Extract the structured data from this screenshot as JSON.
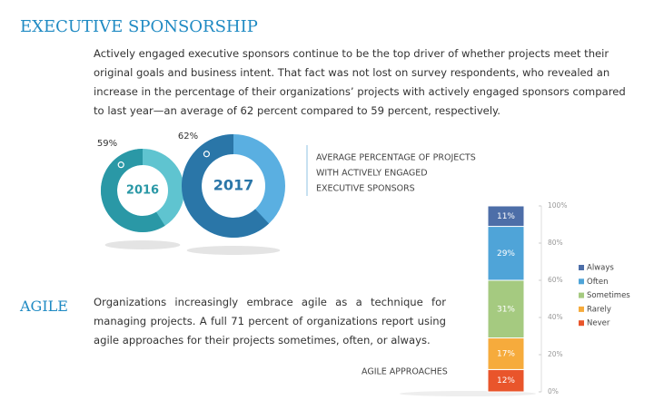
{
  "sponsorship": {
    "title": "EXECUTIVE SPONSORSHIP",
    "body": "Actively engaged executive sponsors continue to be the top driver of whether projects meet their original goals and business intent. That fact was not lost on survey respondents, who revealed an increase in the percentage of their organizations’ projects with actively engaged sponsors compared to last year—an average of 62 percent compared to 59 percent, respectively."
  },
  "sponsorship_chart": {
    "type": "donut",
    "caption_lines": [
      "AVERAGE PERCENTAGE OF PROJECTS",
      "WITH ACTIVELY ENGAGED",
      "EXECUTIVE SPONSORS"
    ],
    "items": [
      {
        "year": "2016",
        "value": 59,
        "value_label": "59%",
        "color": "#2a98a6",
        "track_color": "#5fc4d0"
      },
      {
        "year": "2017",
        "value": 62,
        "value_label": "62%",
        "color": "#2a76a8",
        "track_color": "#5aafe1"
      }
    ]
  },
  "agile": {
    "title": "AGILE",
    "body": "Organizations increasingly embrace agile as a technique for managing projects. A full 71 percent of organizations report using agile approaches for their projects sometimes, often, or always."
  },
  "chart_data": {
    "type": "stacked_bar",
    "caption": "AGILE APPROACHES",
    "series": [
      {
        "name": "Always",
        "color": "#4d6ea8",
        "values": [
          11
        ],
        "value_labels": [
          "11%"
        ]
      },
      {
        "name": "Often",
        "color": "#4fa4d8",
        "values": [
          29
        ],
        "value_labels": [
          "29%"
        ]
      },
      {
        "name": "Sometimes",
        "color": "#a5ca80",
        "values": [
          31
        ],
        "value_labels": [
          "31%"
        ]
      },
      {
        "name": "Rarely",
        "color": "#f6ab3c",
        "values": [
          17
        ],
        "value_labels": [
          "17%"
        ]
      },
      {
        "name": "Never",
        "color": "#e9552b",
        "values": [
          12
        ],
        "value_labels": [
          "12%"
        ]
      }
    ],
    "ylim": [
      0,
      100
    ],
    "yticks": [
      {
        "value": 0,
        "label": "0%"
      },
      {
        "value": 20,
        "label": "20%"
      },
      {
        "value": 40,
        "label": "40%"
      },
      {
        "value": 60,
        "label": "60%"
      },
      {
        "value": 80,
        "label": "80%"
      },
      {
        "value": 100,
        "label": "100%"
      }
    ]
  }
}
